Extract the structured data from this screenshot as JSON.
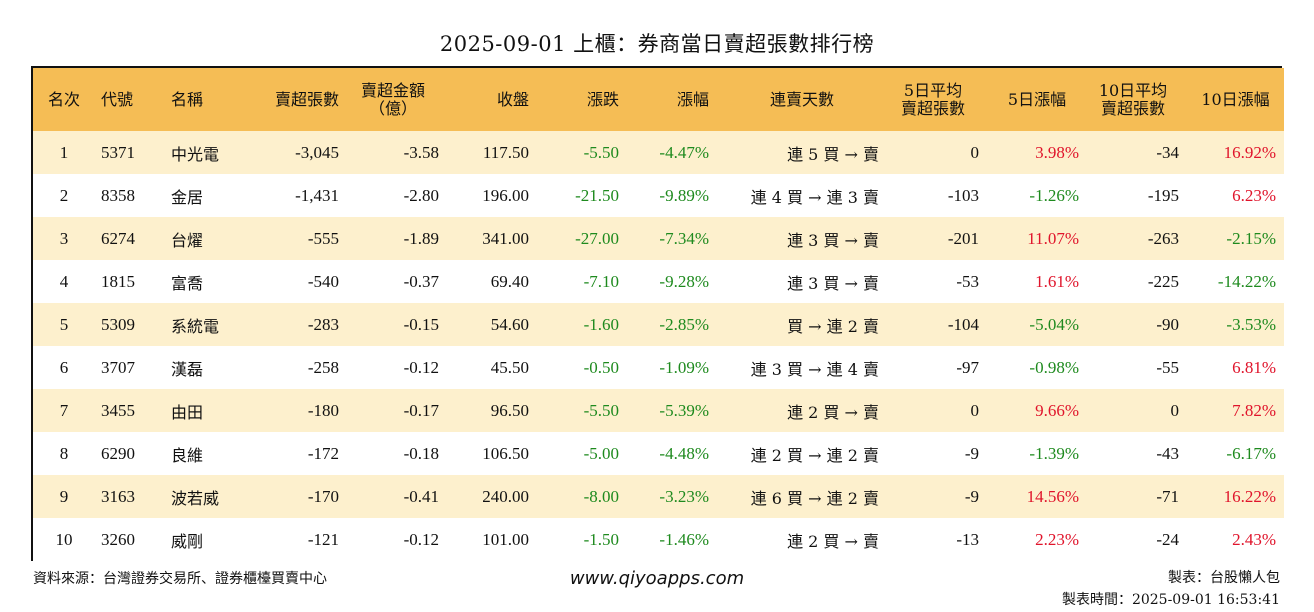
{
  "title": "2025-09-01 上櫃：券商當日賣超張數排行榜",
  "headers": {
    "rank": "名次",
    "code": "代號",
    "name": "名稱",
    "sell_qty": "賣超張數",
    "sell_amt_l1": "賣超金額",
    "sell_amt_l2": "（億）",
    "close": "收盤",
    "change": "漲跌",
    "pct": "漲幅",
    "streak": "連賣天數",
    "avg5_l1": "5日平均",
    "avg5_l2": "賣超張數",
    "pct5": "5日漲幅",
    "avg10_l1": "10日平均",
    "avg10_l2": "賣超張數",
    "pct10": "10日漲幅"
  },
  "rows": [
    {
      "rank": "1",
      "code": "5371",
      "name": "中光電",
      "sell_qty": "-3,045",
      "sell_amt": "-3.58",
      "close": "117.50",
      "change": "-5.50",
      "pct": "-4.47%",
      "streak": "連 5 買 → 賣",
      "avg5": "0",
      "pct5": "3.98%",
      "pct5_color": "red",
      "avg10": "-34",
      "pct10": "16.92%",
      "pct10_color": "red"
    },
    {
      "rank": "2",
      "code": "8358",
      "name": "金居",
      "sell_qty": "-1,431",
      "sell_amt": "-2.80",
      "close": "196.00",
      "change": "-21.50",
      "pct": "-9.89%",
      "streak": "連 4 買 → 連 3 賣",
      "avg5": "-103",
      "pct5": "-1.26%",
      "pct5_color": "green",
      "avg10": "-195",
      "pct10": "6.23%",
      "pct10_color": "red"
    },
    {
      "rank": "3",
      "code": "6274",
      "name": "台燿",
      "sell_qty": "-555",
      "sell_amt": "-1.89",
      "close": "341.00",
      "change": "-27.00",
      "pct": "-7.34%",
      "streak": "連 3 買 → 賣",
      "avg5": "-201",
      "pct5": "11.07%",
      "pct5_color": "red",
      "avg10": "-263",
      "pct10": "-2.15%",
      "pct10_color": "green"
    },
    {
      "rank": "4",
      "code": "1815",
      "name": "富喬",
      "sell_qty": "-540",
      "sell_amt": "-0.37",
      "close": "69.40",
      "change": "-7.10",
      "pct": "-9.28%",
      "streak": "連 3 買 → 賣",
      "avg5": "-53",
      "pct5": "1.61%",
      "pct5_color": "red",
      "avg10": "-225",
      "pct10": "-14.22%",
      "pct10_color": "green"
    },
    {
      "rank": "5",
      "code": "5309",
      "name": "系統電",
      "sell_qty": "-283",
      "sell_amt": "-0.15",
      "close": "54.60",
      "change": "-1.60",
      "pct": "-2.85%",
      "streak": "買 → 連 2 賣",
      "avg5": "-104",
      "pct5": "-5.04%",
      "pct5_color": "green",
      "avg10": "-90",
      "pct10": "-3.53%",
      "pct10_color": "green"
    },
    {
      "rank": "6",
      "code": "3707",
      "name": "漢磊",
      "sell_qty": "-258",
      "sell_amt": "-0.12",
      "close": "45.50",
      "change": "-0.50",
      "pct": "-1.09%",
      "streak": "連 3 買 → 連 4 賣",
      "avg5": "-97",
      "pct5": "-0.98%",
      "pct5_color": "green",
      "avg10": "-55",
      "pct10": "6.81%",
      "pct10_color": "red"
    },
    {
      "rank": "7",
      "code": "3455",
      "name": "由田",
      "sell_qty": "-180",
      "sell_amt": "-0.17",
      "close": "96.50",
      "change": "-5.50",
      "pct": "-5.39%",
      "streak": "連 2 買 → 賣",
      "avg5": "0",
      "pct5": "9.66%",
      "pct5_color": "red",
      "avg10": "0",
      "pct10": "7.82%",
      "pct10_color": "red"
    },
    {
      "rank": "8",
      "code": "6290",
      "name": "良維",
      "sell_qty": "-172",
      "sell_amt": "-0.18",
      "close": "106.50",
      "change": "-5.00",
      "pct": "-4.48%",
      "streak": "連 2 買 → 連 2 賣",
      "avg5": "-9",
      "pct5": "-1.39%",
      "pct5_color": "green",
      "avg10": "-43",
      "pct10": "-6.17%",
      "pct10_color": "green"
    },
    {
      "rank": "9",
      "code": "3163",
      "name": "波若威",
      "sell_qty": "-170",
      "sell_amt": "-0.41",
      "close": "240.00",
      "change": "-8.00",
      "pct": "-3.23%",
      "streak": "連 6 買 → 連 2 賣",
      "avg5": "-9",
      "pct5": "14.56%",
      "pct5_color": "red",
      "avg10": "-71",
      "pct10": "16.22%",
      "pct10_color": "red"
    },
    {
      "rank": "10",
      "code": "3260",
      "name": "威剛",
      "sell_qty": "-121",
      "sell_amt": "-0.12",
      "close": "101.00",
      "change": "-1.50",
      "pct": "-1.46%",
      "streak": "連 2 買 → 賣",
      "avg5": "-13",
      "pct5": "2.23%",
      "pct5_color": "red",
      "avg10": "-24",
      "pct10": "2.43%",
      "pct10_color": "red"
    }
  ],
  "colors": {
    "up": "#e0142b",
    "down": "#1e8a1e",
    "header_bg": "#f5bd55",
    "stripe_bg": "#fdf0cd"
  },
  "footer": {
    "source": "資料來源：台灣證券交易所、證券櫃檯買賣中心",
    "site": "www.qiyoapps.com",
    "maker": "製表：台股懶人包",
    "made_time": "製表時間：2025-09-01 16:53:41"
  }
}
